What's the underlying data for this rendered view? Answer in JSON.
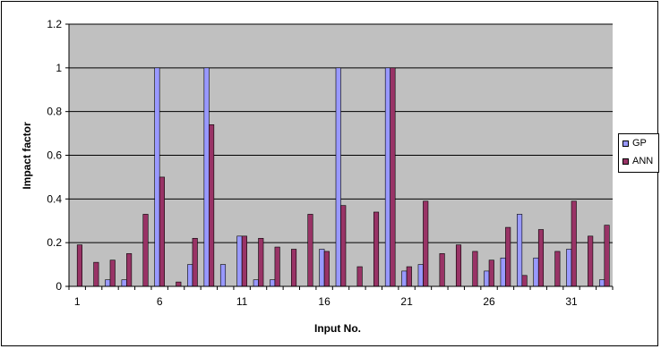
{
  "chart_data": {
    "type": "bar",
    "title": "",
    "xlabel": "Input No.",
    "ylabel": "Impact factor",
    "ylim": [
      0,
      1.2
    ],
    "yticks": [
      "0",
      "0.2",
      "0.4",
      "0.6",
      "0.8",
      "1",
      "1.2"
    ],
    "x": [
      1,
      2,
      3,
      4,
      5,
      6,
      7,
      8,
      9,
      10,
      11,
      12,
      13,
      14,
      15,
      16,
      17,
      18,
      19,
      20,
      21,
      22,
      23,
      24,
      25,
      26,
      27,
      28,
      29,
      30,
      31,
      32,
      33
    ],
    "xtick_labels": [
      "1",
      "6",
      "11",
      "16",
      "21",
      "26",
      "31"
    ],
    "grid": "horizontal",
    "legend_position": "right",
    "plot_background": "#c0c0c0",
    "series": [
      {
        "name": "GP",
        "color": "#9999ff",
        "values": [
          0,
          0,
          0.03,
          0.03,
          0,
          1,
          0,
          0.1,
          1,
          0.1,
          0.23,
          0.03,
          0.03,
          0,
          0,
          0.17,
          1,
          0,
          0,
          1,
          0.07,
          0.1,
          0,
          0,
          0,
          0.07,
          0.13,
          0.33,
          0.13,
          0,
          0.17,
          0,
          0.03
        ]
      },
      {
        "name": "ANN",
        "color": "#993366",
        "values": [
          0.19,
          0.11,
          0.12,
          0.15,
          0.33,
          0.5,
          0.02,
          0.22,
          0.74,
          0,
          0.23,
          0.22,
          0.18,
          0.17,
          0.33,
          0.16,
          0.37,
          0.09,
          0.34,
          1,
          0.09,
          0.39,
          0.15,
          0.19,
          0.16,
          0.12,
          0.27,
          0.05,
          0.26,
          0.16,
          0.39,
          0.23,
          0.28
        ]
      }
    ]
  }
}
